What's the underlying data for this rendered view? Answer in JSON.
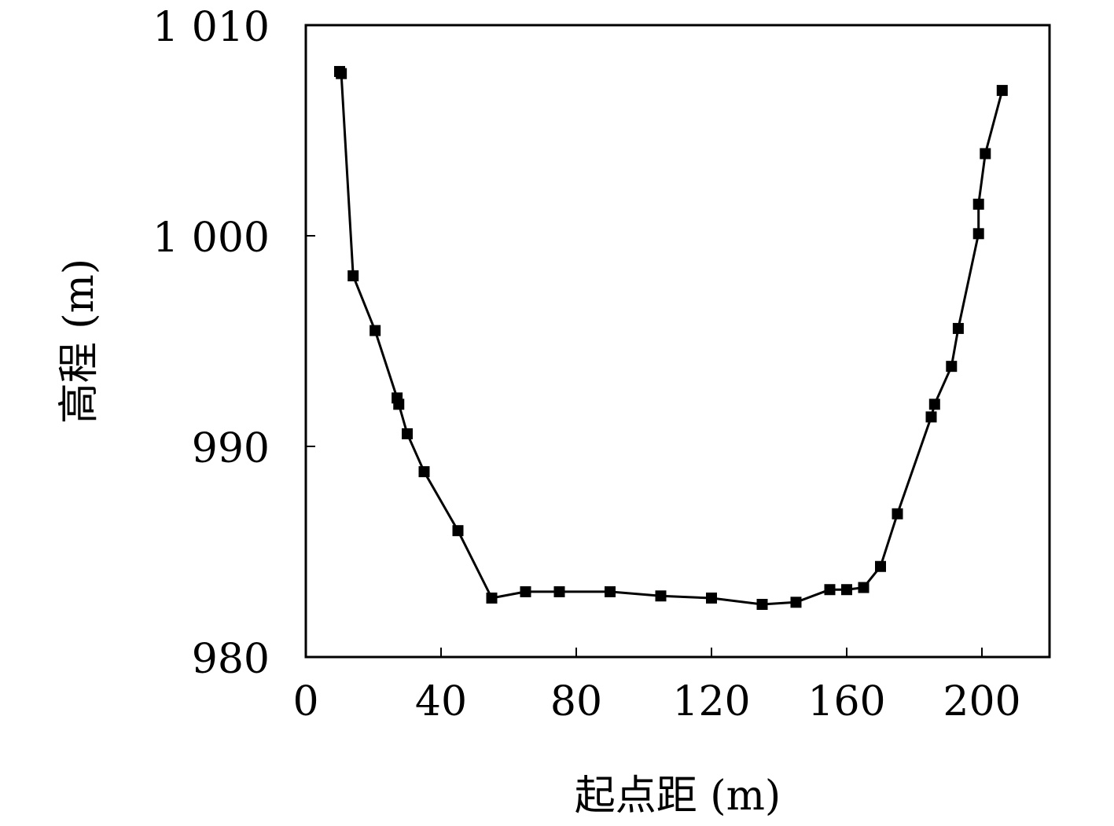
{
  "chart_data": {
    "type": "line",
    "xlabel": "起点距 (m)",
    "ylabel": "高程 (m)",
    "xlim": [
      0,
      220
    ],
    "ylim": [
      980,
      1010
    ],
    "x_ticks": [
      0,
      40,
      80,
      120,
      160,
      200
    ],
    "y_ticks": [
      980,
      990,
      1000,
      1010
    ],
    "x_tick_labels": [
      "0",
      "40",
      "80",
      "120",
      "160",
      "200"
    ],
    "y_tick_labels": [
      "980",
      "990",
      "1 000",
      "1 010"
    ],
    "grid": false,
    "marker": "square",
    "line_color": "#000000",
    "series": [
      {
        "x": [
          10,
          10.5,
          14,
          20.5,
          27,
          27.5,
          30,
          35,
          45,
          55,
          65,
          75,
          90,
          105,
          120,
          135,
          145,
          155,
          160,
          165,
          170,
          175,
          185,
          186,
          191,
          193,
          199,
          199,
          201,
          206
        ],
        "y": [
          1007.8,
          1007.7,
          998.1,
          995.5,
          992.3,
          992.0,
          990.6,
          988.8,
          986.0,
          982.8,
          983.1,
          983.1,
          983.1,
          982.9,
          982.8,
          982.5,
          982.6,
          983.2,
          983.2,
          983.3,
          984.3,
          986.8,
          991.4,
          992.0,
          993.8,
          995.6,
          1000.1,
          1001.5,
          1003.9,
          1006.9
        ]
      }
    ]
  }
}
